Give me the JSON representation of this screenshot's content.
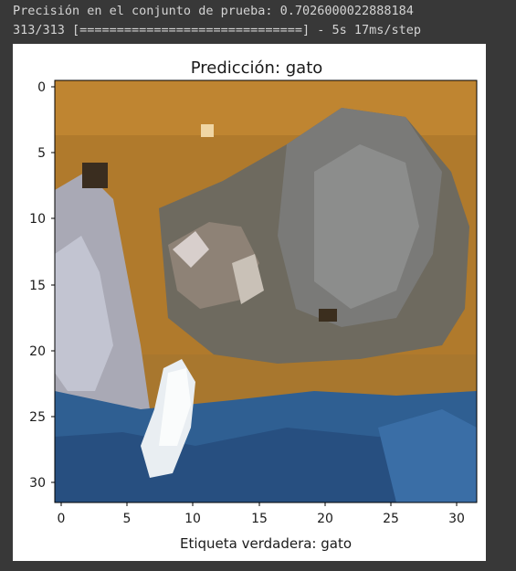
{
  "console": {
    "line1": "Precisión en el conjunto de prueba: 0.7026000022888184",
    "line2": "313/313 [==============================] - 5s 17ms/step"
  },
  "figure": {
    "title": "Predicción: gato",
    "xlabel": "Etiqueta verdadera: gato",
    "x_ticks": [
      "0",
      "5",
      "10",
      "15",
      "20",
      "25",
      "30"
    ],
    "y_ticks": [
      "0",
      "5",
      "10",
      "15",
      "20",
      "25",
      "30"
    ]
  }
}
